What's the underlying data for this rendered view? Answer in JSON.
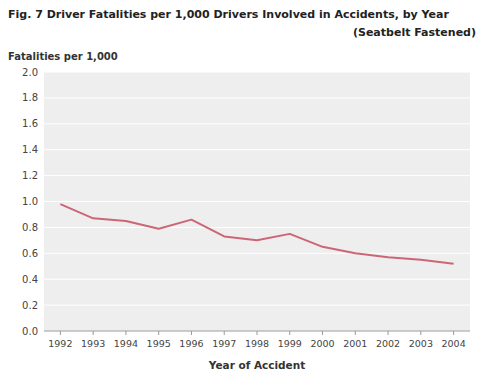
{
  "chart_data": {
    "type": "line",
    "title": "Fig. 7  Driver Fatalities per 1,000 Drivers Involved in Accidents, by Year",
    "subtitle": "(Seatbelt Fastened)",
    "ylabel": "Fatalities per 1,000",
    "xlabel": "Year of Accident",
    "x": [
      1992,
      1993,
      1994,
      1995,
      1996,
      1997,
      1998,
      1999,
      2000,
      2001,
      2002,
      2003,
      2004
    ],
    "values": [
      0.98,
      0.87,
      0.85,
      0.79,
      0.86,
      0.73,
      0.7,
      0.75,
      0.65,
      0.6,
      0.57,
      0.55,
      0.52
    ],
    "color": "#cc6677",
    "xlim": [
      1991.5,
      2004.5
    ],
    "xticks": [
      1992,
      1993,
      1994,
      1995,
      1996,
      1997,
      1998,
      1999,
      2000,
      2001,
      2002,
      2003,
      2004
    ],
    "ylim": [
      0.0,
      2.0
    ],
    "yticks": [
      {
        "value": 0.0,
        "label": "0.0"
      },
      0.2,
      0.4,
      0.6,
      0.8,
      {
        "value": 1.0,
        "label": "1.0"
      },
      1.2,
      1.4,
      1.6,
      1.8,
      {
        "value": 2.0,
        "label": "2.0"
      }
    ],
    "grid": true
  }
}
